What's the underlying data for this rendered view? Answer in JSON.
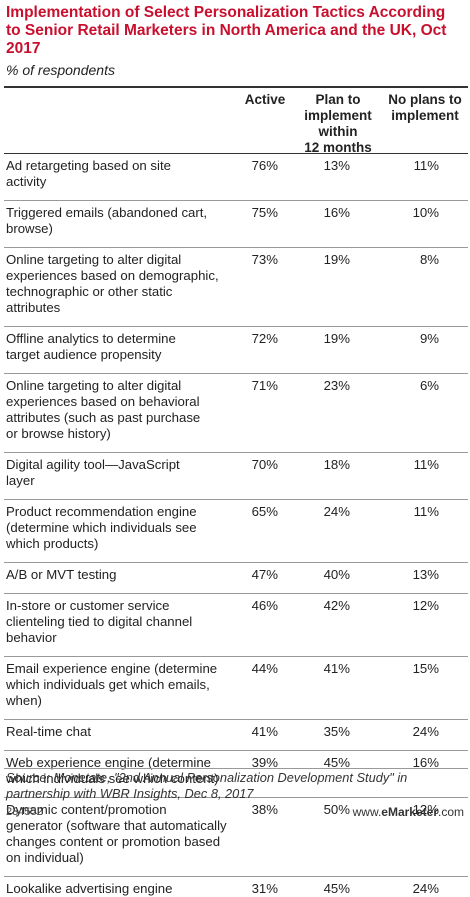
{
  "title": "Implementation of Select Personalization Tactics According to Senior Retail Marketers in North America and the UK, Oct 2017",
  "subtitle": "% of respondents",
  "columns": [
    "Active",
    "Plan to\nimplement\nwithin\n12 months",
    "No plans to\nimplement"
  ],
  "chart_data": {
    "type": "table",
    "title": "Implementation of Select Personalization Tactics According to Senior Retail Marketers in North America and the UK, Oct 2017",
    "columns": [
      "Active",
      "Plan to implement within 12 months",
      "No plans to implement"
    ],
    "rows": [
      {
        "label": "Ad retargeting based on site\nactivity",
        "values": [
          "76%",
          "13%",
          "11%"
        ]
      },
      {
        "label": "Triggered emails (abandoned cart,\nbrowse)",
        "values": [
          "75%",
          "16%",
          "10%"
        ]
      },
      {
        "label": "Online targeting to alter digital\nexperiences based on demographic,\ntechnographic or other static\nattributes",
        "values": [
          "73%",
          "19%",
          "8%"
        ]
      },
      {
        "label": "Offline analytics to determine\ntarget audience propensity",
        "values": [
          "72%",
          "19%",
          "9%"
        ]
      },
      {
        "label": "Online targeting to alter digital\nexperiences based on behavioral\nattributes (such as past purchase\nor browse history)",
        "values": [
          "71%",
          "23%",
          "6%"
        ]
      },
      {
        "label": "Digital agility tool—JavaScript\nlayer",
        "values": [
          "70%",
          "18%",
          "11%"
        ]
      },
      {
        "label": "Product recommendation engine\n(determine which individuals see\nwhich products)",
        "values": [
          "65%",
          "24%",
          "11%"
        ]
      },
      {
        "label": "A/B or MVT testing",
        "values": [
          "47%",
          "40%",
          "13%"
        ]
      },
      {
        "label": "In-store or customer service\nclienteling tied to digital channel\nbehavior",
        "values": [
          "46%",
          "42%",
          "12%"
        ]
      },
      {
        "label": "Email experience engine (determine\nwhich individuals get which emails,\nwhen)",
        "values": [
          "44%",
          "41%",
          "15%"
        ]
      },
      {
        "label": "Real-time chat",
        "values": [
          "41%",
          "35%",
          "24%"
        ]
      },
      {
        "label": "Web experience engine (determine\nwhich individuals see which content)",
        "values": [
          "39%",
          "45%",
          "16%"
        ]
      },
      {
        "label": "Dynamic content/promotion\ngenerator (software that automatically\nchanges content or promotion based\non individual)",
        "values": [
          "38%",
          "50%",
          "12%"
        ]
      },
      {
        "label": "Lookalike advertising engine",
        "values": [
          "31%",
          "45%",
          "24%"
        ]
      }
    ]
  },
  "source": "Source: Monetate, \"2nd Annual Personalization Development Study\" in\npartnership with WBR Insights, Dec 8, 2017",
  "chart_id": "234552",
  "brand": {
    "prefix": "www.",
    "name": "eMarketer",
    "suffix": ".com"
  },
  "colors": {
    "title": "#c8102e",
    "text": "#222222",
    "rule": "#333333",
    "separator": "#999999"
  }
}
